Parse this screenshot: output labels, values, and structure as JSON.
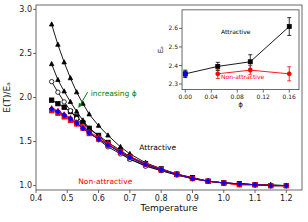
{
  "chart_data": [
    {
      "type": "line",
      "xlabel": "Temperature",
      "ylabel": "E(T)/Eₐ",
      "xlim": [
        0.4,
        1.25
      ],
      "ylim": [
        0.95,
        3.05
      ],
      "xticks": [
        0.4,
        0.5,
        0.6,
        0.7,
        0.8,
        0.9,
        {
          "value": 1.0,
          "label": "1.0"
        },
        1.1,
        1.2
      ],
      "yticks": [
        {
          "value": 1.0,
          "label": "1.0"
        },
        1.5,
        {
          "value": 2.0,
          "label": "2.0"
        },
        2.5,
        {
          "value": 3.0,
          "label": "3.0"
        }
      ],
      "x": [
        0.45,
        0.47,
        0.49,
        0.51,
        0.53,
        0.55,
        0.57,
        0.6,
        0.63,
        0.67,
        0.7,
        0.75,
        0.8,
        0.85,
        0.9,
        0.95,
        1.0,
        1.05,
        1.1,
        1.15,
        1.2
      ],
      "series": [
        {
          "color": "black",
          "marker": "triangle-up",
          "values": [
            2.83,
            2.6,
            2.4,
            2.22,
            2.06,
            1.93,
            1.81,
            1.68,
            1.57,
            1.44,
            1.36,
            1.26,
            1.19,
            1.13,
            1.09,
            1.05,
            1.03,
            1.02,
            1.01,
            1.01,
            1.0
          ]
        },
        {
          "color": "black",
          "marker": "triangle-up",
          "values": [
            2.38,
            2.2,
            2.07,
            1.95,
            1.84,
            1.74,
            1.65,
            1.56,
            1.47,
            1.37,
            1.3,
            1.23,
            1.17,
            1.12,
            1.08,
            1.05,
            1.03,
            1.02,
            1.01,
            1.0,
            1.0
          ]
        },
        {
          "color": "black",
          "marker": "square",
          "values": [
            1.97,
            1.93,
            1.89,
            1.84,
            1.78,
            1.71,
            1.65,
            1.57,
            1.49,
            1.4,
            1.33,
            1.25,
            1.19,
            1.13,
            1.09,
            1.05,
            1.03,
            1.02,
            1.01,
            1.0,
            1.0
          ]
        },
        {
          "color": "black",
          "marker": "circle-open",
          "values": [
            2.18,
            2.06,
            1.95,
            1.85,
            1.76,
            1.68,
            1.6,
            1.52,
            1.44,
            1.36,
            1.3,
            1.22,
            1.17,
            1.12,
            1.08,
            1.05,
            1.03,
            1.02,
            1.01,
            1.0,
            1.0
          ]
        },
        {
          "color": "red",
          "marker": "triangle-up",
          "values": [
            1.88,
            1.85,
            1.81,
            1.77,
            1.72,
            1.67,
            1.61,
            1.55,
            1.48,
            1.39,
            1.33,
            1.25,
            1.19,
            1.13,
            1.08,
            1.05,
            1.03,
            1.01,
            1.01,
            1.0,
            1.0
          ]
        },
        {
          "color": "red",
          "marker": "triangle-down",
          "values": [
            1.86,
            1.83,
            1.79,
            1.75,
            1.7,
            1.65,
            1.6,
            1.53,
            1.47,
            1.38,
            1.32,
            1.24,
            1.18,
            1.13,
            1.08,
            1.05,
            1.03,
            1.01,
            1.01,
            1.0,
            1.0
          ]
        },
        {
          "color": "red",
          "marker": "square",
          "values": [
            1.85,
            1.82,
            1.78,
            1.74,
            1.7,
            1.65,
            1.59,
            1.53,
            1.46,
            1.38,
            1.32,
            1.24,
            1.18,
            1.13,
            1.08,
            1.05,
            1.03,
            1.01,
            1.01,
            1.0,
            1.0
          ]
        },
        {
          "color": "blue",
          "marker": "diamond",
          "values": [
            1.87,
            1.84,
            1.8,
            1.76,
            1.71,
            1.65,
            1.6,
            1.53,
            1.46,
            1.38,
            1.32,
            1.24,
            1.18,
            1.13,
            1.08,
            1.05,
            1.03,
            1.02,
            1.01,
            1.0,
            1.0
          ]
        }
      ],
      "annotations": [
        {
          "text": "Attractive",
          "x": 0.73,
          "y": 1.4,
          "color": "black"
        },
        {
          "text": "Non-attractive",
          "x": 0.535,
          "y": 1.015,
          "color": "red"
        },
        {
          "text": "increasing ϕ",
          "x": 0.575,
          "y": 2.02,
          "color": "green"
        }
      ],
      "arrows": [
        {
          "from": [
            0.565,
            2.06
          ],
          "to": [
            0.535,
            1.88
          ],
          "color": "green"
        }
      ]
    },
    {
      "type": "line",
      "xlabel": "ϕ",
      "ylabel": "Eₐ",
      "xlim": [
        -0.005,
        0.175
      ],
      "ylim": [
        2.27,
        2.7
      ],
      "xticks": [
        {
          "value": 0.0,
          "label": "0.00"
        },
        {
          "value": 0.04,
          "label": "0.04"
        },
        {
          "value": 0.08,
          "label": "0.08"
        },
        {
          "value": 0.12,
          "label": "0.12"
        },
        {
          "value": 0.16,
          "label": "0.16"
        }
      ],
      "yticks": [
        2.3,
        2.4,
        2.5,
        2.6
      ],
      "series": [
        {
          "color": "black",
          "marker": "square",
          "x": [
            0.0,
            0.05,
            0.1,
            0.16
          ],
          "values": [
            2.355,
            2.395,
            2.42,
            2.61
          ],
          "errors": [
            0.02,
            0.022,
            0.038,
            0.048
          ]
        },
        {
          "color": "red",
          "marker": "circle",
          "x": [
            0.05,
            0.1,
            0.16
          ],
          "values": [
            2.355,
            2.375,
            2.355
          ],
          "errors": [
            0.025,
            0.025,
            0.038
          ]
        },
        {
          "color": "blue",
          "marker": "diamond",
          "line_style": "none",
          "x": [
            0.0
          ],
          "values": [
            2.355
          ],
          "errors": [
            0.015
          ]
        }
      ],
      "annotations": [
        {
          "text": "Attractive",
          "x": 0.055,
          "y": 2.57,
          "color": "black"
        },
        {
          "text": "Non-attractive",
          "x": 0.055,
          "y": 2.325,
          "color": "red"
        }
      ]
    }
  ]
}
